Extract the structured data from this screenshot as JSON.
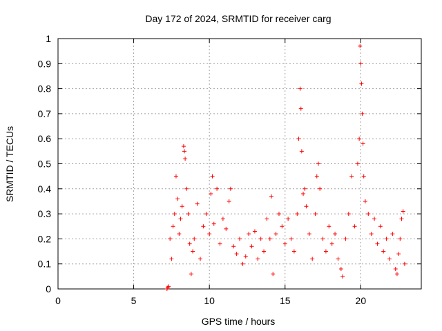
{
  "chart_data": {
    "type": "scatter",
    "title": "Day 172 of 2024, SRMTID for receiver carg",
    "xlabel": "GPS time / hours",
    "ylabel": "SRMTID / TECUs",
    "xlim": [
      0,
      24
    ],
    "ylim": [
      0,
      1
    ],
    "x_ticks": [
      0,
      5,
      10,
      15,
      20
    ],
    "y_ticks": [
      0,
      0.1,
      0.2,
      0.3,
      0.4,
      0.5,
      0.6,
      0.7,
      0.8,
      0.9,
      1
    ],
    "x_tick_labels": [
      "0",
      "5",
      "10",
      "15",
      "20"
    ],
    "y_tick_labels": [
      "0",
      "0.1",
      "0.2",
      "0.3",
      "0.4",
      "0.5",
      "0.6",
      "0.7",
      "0.8",
      "0.9",
      "1"
    ],
    "grid": true,
    "marker": "plus",
    "color": "#ff0000",
    "series": [
      {
        "name": "SRMTID",
        "points": [
          [
            7.2,
            0.0
          ],
          [
            7.25,
            0.005
          ],
          [
            7.3,
            0.01
          ],
          [
            7.4,
            0.2
          ],
          [
            7.5,
            0.12
          ],
          [
            7.6,
            0.25
          ],
          [
            7.7,
            0.3
          ],
          [
            7.8,
            0.45
          ],
          [
            7.9,
            0.36
          ],
          [
            8.0,
            0.22
          ],
          [
            8.1,
            0.28
          ],
          [
            8.2,
            0.33
          ],
          [
            8.3,
            0.57
          ],
          [
            8.35,
            0.55
          ],
          [
            8.4,
            0.52
          ],
          [
            8.5,
            0.4
          ],
          [
            8.6,
            0.3
          ],
          [
            8.7,
            0.18
          ],
          [
            8.8,
            0.06
          ],
          [
            8.9,
            0.15
          ],
          [
            9.0,
            0.2
          ],
          [
            9.2,
            0.34
          ],
          [
            9.4,
            0.12
          ],
          [
            9.6,
            0.25
          ],
          [
            9.8,
            0.3
          ],
          [
            10.0,
            0.22
          ],
          [
            10.1,
            0.38
          ],
          [
            10.2,
            0.45
          ],
          [
            10.3,
            0.26
          ],
          [
            10.5,
            0.4
          ],
          [
            10.7,
            0.18
          ],
          [
            10.9,
            0.28
          ],
          [
            11.1,
            0.24
          ],
          [
            11.3,
            0.35
          ],
          [
            11.4,
            0.4
          ],
          [
            11.6,
            0.17
          ],
          [
            11.8,
            0.14
          ],
          [
            12.0,
            0.2
          ],
          [
            12.2,
            0.1
          ],
          [
            12.4,
            0.13
          ],
          [
            12.6,
            0.22
          ],
          [
            12.8,
            0.17
          ],
          [
            13.0,
            0.23
          ],
          [
            13.2,
            0.12
          ],
          [
            13.4,
            0.2
          ],
          [
            13.6,
            0.15
          ],
          [
            13.8,
            0.28
          ],
          [
            14.0,
            0.2
          ],
          [
            14.1,
            0.37
          ],
          [
            14.2,
            0.06
          ],
          [
            14.4,
            0.22
          ],
          [
            14.6,
            0.3
          ],
          [
            14.8,
            0.25
          ],
          [
            15.0,
            0.18
          ],
          [
            15.2,
            0.28
          ],
          [
            15.4,
            0.2
          ],
          [
            15.6,
            0.15
          ],
          [
            15.8,
            0.3
          ],
          [
            15.9,
            0.6
          ],
          [
            16.0,
            0.8
          ],
          [
            16.05,
            0.72
          ],
          [
            16.1,
            0.55
          ],
          [
            16.2,
            0.38
          ],
          [
            16.3,
            0.4
          ],
          [
            16.4,
            0.33
          ],
          [
            16.6,
            0.22
          ],
          [
            16.8,
            0.12
          ],
          [
            17.0,
            0.3
          ],
          [
            17.1,
            0.45
          ],
          [
            17.2,
            0.5
          ],
          [
            17.3,
            0.4
          ],
          [
            17.5,
            0.2
          ],
          [
            17.7,
            0.15
          ],
          [
            17.9,
            0.25
          ],
          [
            18.1,
            0.18
          ],
          [
            18.3,
            0.22
          ],
          [
            18.5,
            0.12
          ],
          [
            18.7,
            0.08
          ],
          [
            18.8,
            0.05
          ],
          [
            19.0,
            0.2
          ],
          [
            19.2,
            0.3
          ],
          [
            19.4,
            0.45
          ],
          [
            19.6,
            0.25
          ],
          [
            19.8,
            0.5
          ],
          [
            19.9,
            0.6
          ],
          [
            19.95,
            0.97
          ],
          [
            20.0,
            0.9
          ],
          [
            20.05,
            0.82
          ],
          [
            20.1,
            0.7
          ],
          [
            20.15,
            0.58
          ],
          [
            20.2,
            0.45
          ],
          [
            20.3,
            0.35
          ],
          [
            20.5,
            0.3
          ],
          [
            20.7,
            0.22
          ],
          [
            20.9,
            0.28
          ],
          [
            21.1,
            0.18
          ],
          [
            21.3,
            0.25
          ],
          [
            21.5,
            0.15
          ],
          [
            21.7,
            0.2
          ],
          [
            21.9,
            0.12
          ],
          [
            22.1,
            0.22
          ],
          [
            22.3,
            0.08
          ],
          [
            22.4,
            0.06
          ],
          [
            22.5,
            0.14
          ],
          [
            22.6,
            0.2
          ],
          [
            22.7,
            0.28
          ],
          [
            22.8,
            0.31
          ],
          [
            22.9,
            0.1
          ]
        ]
      }
    ]
  }
}
